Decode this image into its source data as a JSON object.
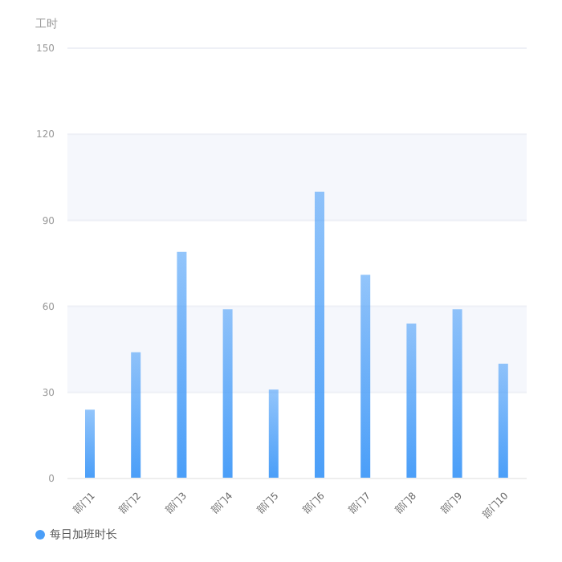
{
  "chart_data": {
    "type": "bar",
    "ylabel": "工时",
    "categories": [
      "部门1",
      "部门2",
      "部门3",
      "部门4",
      "部门5",
      "部门6",
      "部门7",
      "部门8",
      "部门9",
      "部门10"
    ],
    "series": [
      {
        "name": "每日加班时长",
        "color": "#4a9ef8",
        "values": [
          24,
          44,
          79,
          59,
          31,
          100,
          71,
          54,
          59,
          40
        ]
      }
    ],
    "ylim": [
      0,
      150
    ],
    "yticks": [
      0,
      30,
      60,
      90,
      120,
      150
    ],
    "grid": "y",
    "legend": "bottom left"
  }
}
